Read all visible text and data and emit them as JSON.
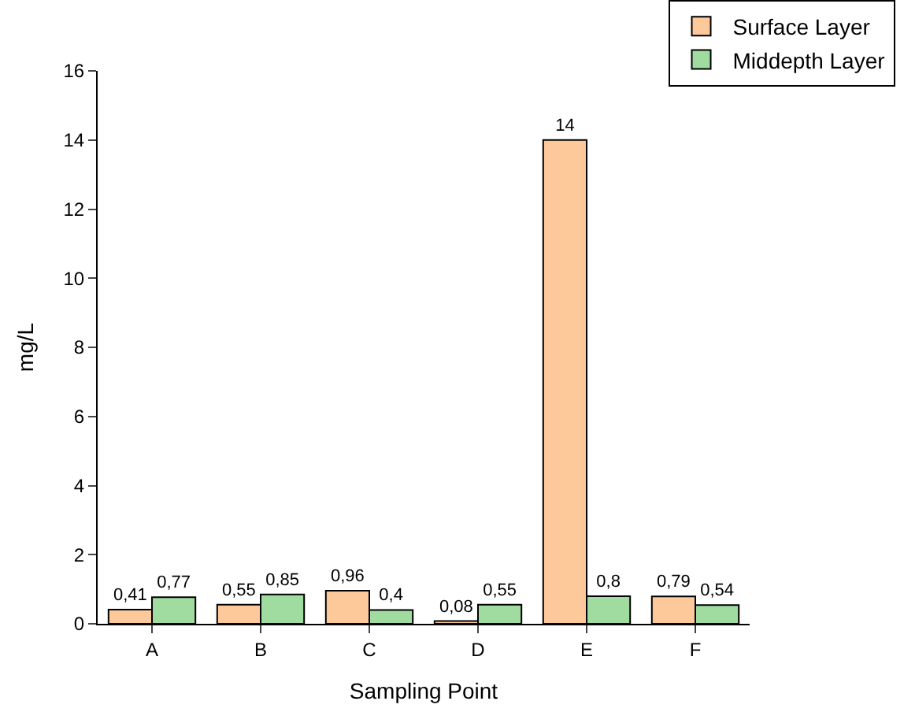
{
  "chart_data": {
    "type": "bar",
    "xlabel": "Sampling Point",
    "ylabel": "mg/L",
    "categories": [
      "A",
      "B",
      "C",
      "D",
      "E",
      "F"
    ],
    "series": [
      {
        "name": "Surface Layer",
        "color": "#fdc99b",
        "values": [
          0.41,
          0.55,
          0.96,
          0.08,
          14,
          0.79
        ],
        "value_labels": [
          "0,41",
          "0,55",
          "0,96",
          "0,08",
          "14",
          "0,79"
        ]
      },
      {
        "name": "Middepth Layer",
        "color": "#a0dba0",
        "values": [
          0.77,
          0.85,
          0.4,
          0.55,
          0.8,
          0.54
        ],
        "value_labels": [
          "0,77",
          "0,85",
          "0,4",
          "0,55",
          "0,8",
          "0,54"
        ]
      }
    ],
    "ylim": [
      0,
      16
    ],
    "yticks": [
      0,
      2,
      4,
      6,
      8,
      10,
      12,
      14,
      16
    ],
    "legend": "top right"
  }
}
